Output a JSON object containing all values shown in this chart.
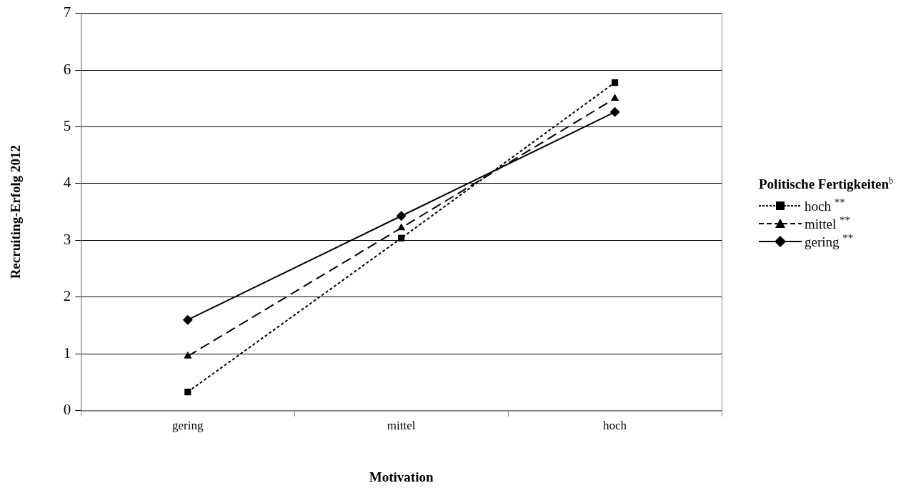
{
  "chart_data": {
    "type": "line",
    "xlabel": "Motivation",
    "ylabel": "Recruiting-Erfolg 2012",
    "legend_title": "Politische Fertigkeiten$^{b}$",
    "categories": [
      "gering",
      "mittel",
      "hoch"
    ],
    "series": [
      {
        "name": "hoch $^{**}$",
        "color": "#000000",
        "marker": "square",
        "line_style": "dotted",
        "values": [
          0.33,
          3.04,
          5.78
        ]
      },
      {
        "name": "mittel $^{**}$",
        "color": "#000000",
        "marker": "triangle",
        "line_style": "dashed",
        "values": [
          0.96,
          3.22,
          5.5
        ]
      },
      {
        "name": "gering $^{**}$",
        "color": "#000000",
        "marker": "diamond",
        "line_style": "solid",
        "values": [
          1.6,
          3.43,
          5.26
        ]
      }
    ],
    "ylim": [
      0,
      7
    ],
    "yticks": [
      0,
      1,
      2,
      3,
      4,
      5,
      6,
      7
    ],
    "grid": "y",
    "legend": "right"
  }
}
